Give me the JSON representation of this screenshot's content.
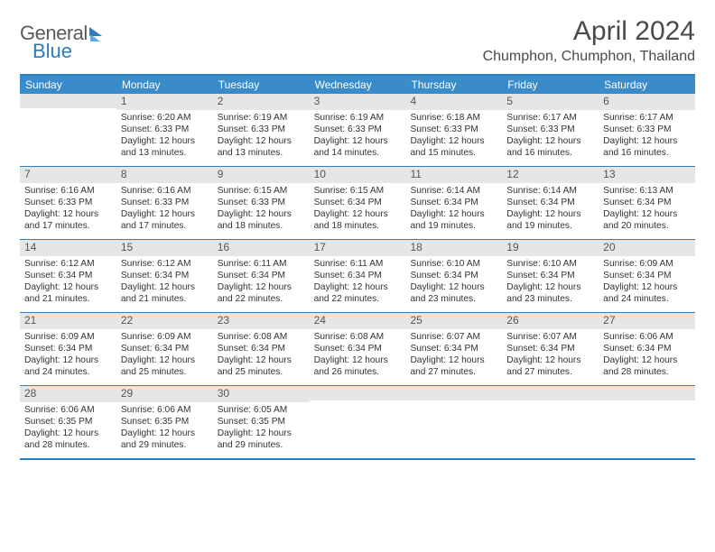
{
  "logo": {
    "part1": "General",
    "part2": "Blue"
  },
  "title": "April 2024",
  "location": "Chumphon, Chumphon, Thailand",
  "colors": {
    "header_bg": "#3a8bc9",
    "border": "#2c7fb8",
    "daynum_bg": "#e6e6e6",
    "text": "#333333"
  },
  "dow": [
    "Sunday",
    "Monday",
    "Tuesday",
    "Wednesday",
    "Thursday",
    "Friday",
    "Saturday"
  ],
  "weeks": [
    [
      {
        "n": "",
        "sr": "",
        "ss": "",
        "dl": ""
      },
      {
        "n": "1",
        "sr": "Sunrise: 6:20 AM",
        "ss": "Sunset: 6:33 PM",
        "dl": "Daylight: 12 hours and 13 minutes."
      },
      {
        "n": "2",
        "sr": "Sunrise: 6:19 AM",
        "ss": "Sunset: 6:33 PM",
        "dl": "Daylight: 12 hours and 13 minutes."
      },
      {
        "n": "3",
        "sr": "Sunrise: 6:19 AM",
        "ss": "Sunset: 6:33 PM",
        "dl": "Daylight: 12 hours and 14 minutes."
      },
      {
        "n": "4",
        "sr": "Sunrise: 6:18 AM",
        "ss": "Sunset: 6:33 PM",
        "dl": "Daylight: 12 hours and 15 minutes."
      },
      {
        "n": "5",
        "sr": "Sunrise: 6:17 AM",
        "ss": "Sunset: 6:33 PM",
        "dl": "Daylight: 12 hours and 16 minutes."
      },
      {
        "n": "6",
        "sr": "Sunrise: 6:17 AM",
        "ss": "Sunset: 6:33 PM",
        "dl": "Daylight: 12 hours and 16 minutes."
      }
    ],
    [
      {
        "n": "7",
        "sr": "Sunrise: 6:16 AM",
        "ss": "Sunset: 6:33 PM",
        "dl": "Daylight: 12 hours and 17 minutes."
      },
      {
        "n": "8",
        "sr": "Sunrise: 6:16 AM",
        "ss": "Sunset: 6:33 PM",
        "dl": "Daylight: 12 hours and 17 minutes."
      },
      {
        "n": "9",
        "sr": "Sunrise: 6:15 AM",
        "ss": "Sunset: 6:33 PM",
        "dl": "Daylight: 12 hours and 18 minutes."
      },
      {
        "n": "10",
        "sr": "Sunrise: 6:15 AM",
        "ss": "Sunset: 6:34 PM",
        "dl": "Daylight: 12 hours and 18 minutes."
      },
      {
        "n": "11",
        "sr": "Sunrise: 6:14 AM",
        "ss": "Sunset: 6:34 PM",
        "dl": "Daylight: 12 hours and 19 minutes."
      },
      {
        "n": "12",
        "sr": "Sunrise: 6:14 AM",
        "ss": "Sunset: 6:34 PM",
        "dl": "Daylight: 12 hours and 19 minutes."
      },
      {
        "n": "13",
        "sr": "Sunrise: 6:13 AM",
        "ss": "Sunset: 6:34 PM",
        "dl": "Daylight: 12 hours and 20 minutes."
      }
    ],
    [
      {
        "n": "14",
        "sr": "Sunrise: 6:12 AM",
        "ss": "Sunset: 6:34 PM",
        "dl": "Daylight: 12 hours and 21 minutes."
      },
      {
        "n": "15",
        "sr": "Sunrise: 6:12 AM",
        "ss": "Sunset: 6:34 PM",
        "dl": "Daylight: 12 hours and 21 minutes."
      },
      {
        "n": "16",
        "sr": "Sunrise: 6:11 AM",
        "ss": "Sunset: 6:34 PM",
        "dl": "Daylight: 12 hours and 22 minutes."
      },
      {
        "n": "17",
        "sr": "Sunrise: 6:11 AM",
        "ss": "Sunset: 6:34 PM",
        "dl": "Daylight: 12 hours and 22 minutes."
      },
      {
        "n": "18",
        "sr": "Sunrise: 6:10 AM",
        "ss": "Sunset: 6:34 PM",
        "dl": "Daylight: 12 hours and 23 minutes."
      },
      {
        "n": "19",
        "sr": "Sunrise: 6:10 AM",
        "ss": "Sunset: 6:34 PM",
        "dl": "Daylight: 12 hours and 23 minutes."
      },
      {
        "n": "20",
        "sr": "Sunrise: 6:09 AM",
        "ss": "Sunset: 6:34 PM",
        "dl": "Daylight: 12 hours and 24 minutes."
      }
    ],
    [
      {
        "n": "21",
        "sr": "Sunrise: 6:09 AM",
        "ss": "Sunset: 6:34 PM",
        "dl": "Daylight: 12 hours and 24 minutes."
      },
      {
        "n": "22",
        "sr": "Sunrise: 6:09 AM",
        "ss": "Sunset: 6:34 PM",
        "dl": "Daylight: 12 hours and 25 minutes."
      },
      {
        "n": "23",
        "sr": "Sunrise: 6:08 AM",
        "ss": "Sunset: 6:34 PM",
        "dl": "Daylight: 12 hours and 25 minutes."
      },
      {
        "n": "24",
        "sr": "Sunrise: 6:08 AM",
        "ss": "Sunset: 6:34 PM",
        "dl": "Daylight: 12 hours and 26 minutes."
      },
      {
        "n": "25",
        "sr": "Sunrise: 6:07 AM",
        "ss": "Sunset: 6:34 PM",
        "dl": "Daylight: 12 hours and 27 minutes."
      },
      {
        "n": "26",
        "sr": "Sunrise: 6:07 AM",
        "ss": "Sunset: 6:34 PM",
        "dl": "Daylight: 12 hours and 27 minutes."
      },
      {
        "n": "27",
        "sr": "Sunrise: 6:06 AM",
        "ss": "Sunset: 6:34 PM",
        "dl": "Daylight: 12 hours and 28 minutes."
      }
    ],
    [
      {
        "n": "28",
        "sr": "Sunrise: 6:06 AM",
        "ss": "Sunset: 6:35 PM",
        "dl": "Daylight: 12 hours and 28 minutes."
      },
      {
        "n": "29",
        "sr": "Sunrise: 6:06 AM",
        "ss": "Sunset: 6:35 PM",
        "dl": "Daylight: 12 hours and 29 minutes."
      },
      {
        "n": "30",
        "sr": "Sunrise: 6:05 AM",
        "ss": "Sunset: 6:35 PM",
        "dl": "Daylight: 12 hours and 29 minutes."
      },
      {
        "n": "",
        "sr": "",
        "ss": "",
        "dl": ""
      },
      {
        "n": "",
        "sr": "",
        "ss": "",
        "dl": ""
      },
      {
        "n": "",
        "sr": "",
        "ss": "",
        "dl": ""
      },
      {
        "n": "",
        "sr": "",
        "ss": "",
        "dl": ""
      }
    ]
  ]
}
